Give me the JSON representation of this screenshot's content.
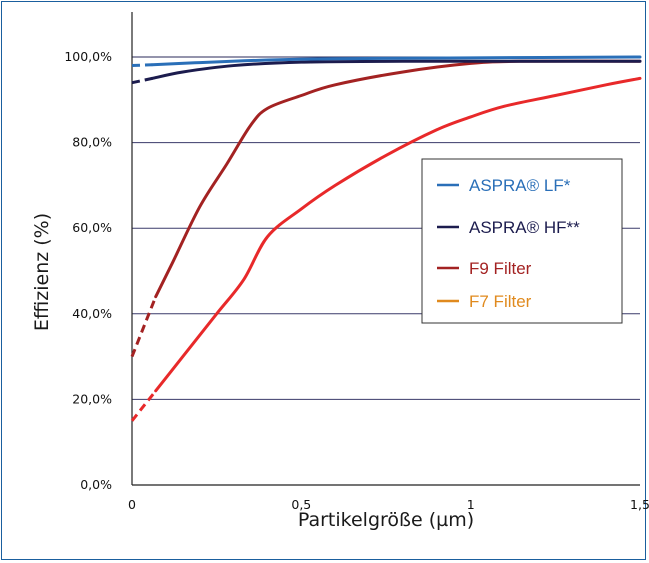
{
  "chart_data": {
    "type": "line",
    "xlabel": "Partikelgröße (µm)",
    "ylabel": "Effizienz (%)",
    "xlim": [
      0,
      1.5
    ],
    "ylim": [
      0,
      100
    ],
    "x_ticks": [
      "0",
      "0,5",
      "1",
      "1,5"
    ],
    "y_ticks": [
      "0,0%",
      "20,0%",
      "40,0%",
      "60,0%",
      "80,0%",
      "100,0%"
    ],
    "gridlines": [
      20,
      40,
      60,
      80,
      100
    ],
    "legend_position": "right",
    "series": [
      {
        "name": "ASPRA® LF*",
        "color": "#2a6fb8",
        "dashed": [
          [
            0,
            98
          ],
          [
            0.06,
            98.2
          ]
        ],
        "points": [
          [
            0.06,
            98.2
          ],
          [
            0.2,
            98.7
          ],
          [
            0.4,
            99.3
          ],
          [
            0.6,
            99.6
          ],
          [
            1.0,
            99.8
          ],
          [
            1.5,
            100
          ]
        ]
      },
      {
        "name": "ASPRA® HF**",
        "color": "#1c1c4e",
        "dashed": [
          [
            0,
            94
          ],
          [
            0.06,
            95
          ]
        ],
        "points": [
          [
            0.06,
            95
          ],
          [
            0.15,
            96.5
          ],
          [
            0.3,
            98
          ],
          [
            0.5,
            98.8
          ],
          [
            0.8,
            99
          ],
          [
            1.0,
            99
          ],
          [
            1.5,
            99
          ]
        ]
      },
      {
        "name": "F9 Filter",
        "color": "#a32222",
        "dashed": [
          [
            0,
            30
          ],
          [
            0.07,
            44
          ]
        ],
        "points": [
          [
            0.07,
            44
          ],
          [
            0.12,
            52
          ],
          [
            0.2,
            65
          ],
          [
            0.28,
            75
          ],
          [
            0.35,
            84
          ],
          [
            0.4,
            88
          ],
          [
            0.5,
            91
          ],
          [
            0.6,
            93.5
          ],
          [
            0.8,
            96.5
          ],
          [
            1.0,
            98.5
          ],
          [
            1.15,
            99
          ],
          [
            1.5,
            99
          ]
        ]
      },
      {
        "name": "F7 Filter",
        "color": "#e8292a",
        "legend_color": "#e08a1e",
        "dashed": [
          [
            0,
            15
          ],
          [
            0.07,
            22
          ]
        ],
        "points": [
          [
            0.07,
            22
          ],
          [
            0.15,
            30
          ],
          [
            0.25,
            40
          ],
          [
            0.33,
            48
          ],
          [
            0.4,
            58
          ],
          [
            0.5,
            64.5
          ],
          [
            0.6,
            70
          ],
          [
            0.75,
            77
          ],
          [
            0.9,
            83
          ],
          [
            1.0,
            86
          ],
          [
            1.1,
            88.5
          ],
          [
            1.25,
            91
          ],
          [
            1.4,
            93.5
          ],
          [
            1.5,
            95
          ]
        ]
      }
    ]
  }
}
